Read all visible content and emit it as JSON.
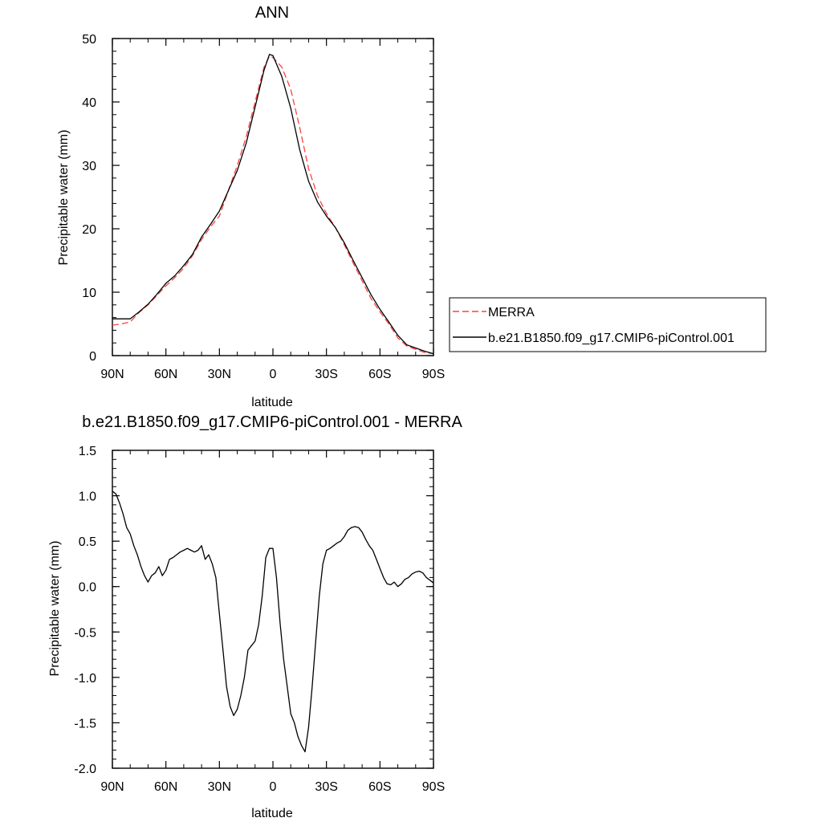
{
  "chart_data": [
    {
      "type": "line",
      "title": "ANN",
      "xlabel": "latitude",
      "ylabel": "Precipitable water (mm)",
      "xlim": [
        90,
        -90
      ],
      "ylim": [
        0,
        50
      ],
      "xticks": [
        {
          "value": 90,
          "label": "90N"
        },
        {
          "value": 60,
          "label": "60N"
        },
        {
          "value": 30,
          "label": "30N"
        },
        {
          "value": 0,
          "label": "0"
        },
        {
          "value": -30,
          "label": "30S"
        },
        {
          "value": -60,
          "label": "60S"
        },
        {
          "value": -90,
          "label": "90S"
        }
      ],
      "yticks": [
        {
          "value": 0,
          "label": "0"
        },
        {
          "value": 10,
          "label": "10"
        },
        {
          "value": 20,
          "label": "20"
        },
        {
          "value": 30,
          "label": "30"
        },
        {
          "value": 40,
          "label": "40"
        },
        {
          "value": 50,
          "label": "50"
        }
      ],
      "series": [
        {
          "name": "MERRA",
          "color": "#ff4040",
          "dash": "8,4",
          "x": [
            90,
            85,
            80,
            75,
            70,
            65,
            60,
            55,
            50,
            45,
            40,
            35,
            30,
            25,
            20,
            15,
            10,
            5,
            2,
            0,
            -5,
            -10,
            -15,
            -20,
            -25,
            -30,
            -35,
            -40,
            -45,
            -50,
            -55,
            -60,
            -65,
            -70,
            -75,
            -80,
            -85,
            -90
          ],
          "y": [
            4.8,
            5.0,
            5.3,
            6.8,
            8.0,
            9.5,
            11.0,
            12.3,
            13.8,
            15.8,
            18.3,
            20.3,
            22.0,
            26.0,
            30.0,
            34.5,
            40.0,
            45.5,
            47.2,
            47.0,
            45.5,
            42.0,
            36.0,
            29.5,
            25.2,
            22.4,
            20.2,
            17.5,
            14.6,
            11.8,
            9.0,
            6.9,
            5.0,
            2.8,
            1.5,
            1.0,
            0.5,
            0.3
          ]
        },
        {
          "name": "b.e21.B1850.f09_g17.CMIP6-piControl.001",
          "color": "#000000",
          "dash": "",
          "x": [
            90,
            85,
            80,
            75,
            70,
            65,
            60,
            55,
            50,
            45,
            40,
            35,
            30,
            25,
            20,
            15,
            10,
            5,
            2,
            0,
            -5,
            -10,
            -15,
            -20,
            -25,
            -30,
            -35,
            -40,
            -45,
            -50,
            -55,
            -60,
            -65,
            -70,
            -75,
            -80,
            -85,
            -90
          ],
          "y": [
            5.8,
            5.8,
            5.8,
            6.9,
            8.1,
            9.7,
            11.4,
            12.6,
            14.2,
            16.0,
            18.7,
            20.7,
            22.8,
            26.0,
            29.2,
            33.5,
            39.2,
            45.0,
            47.5,
            47.3,
            44.0,
            39.0,
            32.5,
            27.5,
            24.2,
            22.0,
            20.2,
            17.8,
            15.0,
            12.3,
            9.6,
            7.3,
            5.3,
            3.2,
            1.7,
            1.2,
            0.7,
            0.3
          ]
        }
      ],
      "legend": {
        "position": "right",
        "entries": [
          "MERRA",
          "b.e21.B1850.f09_g17.CMIP6-piControl.001"
        ]
      }
    },
    {
      "type": "line",
      "title": "b.e21.B1850.f09_g17.CMIP6-piControl.001 - MERRA",
      "xlabel": "latitude",
      "ylabel": "Precipitable water (mm)",
      "xlim": [
        90,
        -90
      ],
      "ylim": [
        -2.0,
        1.5
      ],
      "xticks": [
        {
          "value": 90,
          "label": "90N"
        },
        {
          "value": 60,
          "label": "60N"
        },
        {
          "value": 30,
          "label": "30N"
        },
        {
          "value": 0,
          "label": "0"
        },
        {
          "value": -30,
          "label": "30S"
        },
        {
          "value": -60,
          "label": "60S"
        },
        {
          "value": -90,
          "label": "90S"
        }
      ],
      "yticks": [
        {
          "value": -2.0,
          "label": "-2.0"
        },
        {
          "value": -1.5,
          "label": "-1.5"
        },
        {
          "value": -1.0,
          "label": "-1.0"
        },
        {
          "value": -0.5,
          "label": "-0.5"
        },
        {
          "value": 0.0,
          "label": "0.0"
        },
        {
          "value": 0.5,
          "label": "0.5"
        },
        {
          "value": 1.0,
          "label": "1.0"
        },
        {
          "value": 1.5,
          "label": "1.5"
        }
      ],
      "series": [
        {
          "color": "#000000",
          "dash": "",
          "x": [
            90,
            88,
            86,
            84,
            82,
            80,
            78,
            76,
            74,
            72,
            70,
            68,
            66,
            64,
            62,
            60,
            58,
            56,
            54,
            52,
            50,
            48,
            46,
            44,
            42,
            40,
            38,
            36,
            34,
            32,
            30,
            28,
            26,
            24,
            22,
            20,
            18,
            16,
            14,
            12,
            10,
            8,
            6,
            4,
            2,
            0,
            -2,
            -4,
            -6,
            -8,
            -10,
            -12,
            -14,
            -16,
            -18,
            -20,
            -22,
            -24,
            -26,
            -28,
            -30,
            -32,
            -34,
            -36,
            -38,
            -40,
            -42,
            -44,
            -46,
            -48,
            -50,
            -52,
            -54,
            -56,
            -58,
            -60,
            -62,
            -64,
            -66,
            -68,
            -70,
            -72,
            -74,
            -76,
            -78,
            -80,
            -82,
            -84,
            -86,
            -88,
            -90
          ],
          "y": [
            1.05,
            1.02,
            0.92,
            0.8,
            0.65,
            0.58,
            0.45,
            0.35,
            0.22,
            0.12,
            0.05,
            0.12,
            0.15,
            0.22,
            0.12,
            0.18,
            0.3,
            0.32,
            0.35,
            0.38,
            0.4,
            0.42,
            0.4,
            0.38,
            0.4,
            0.45,
            0.3,
            0.35,
            0.25,
            0.1,
            -0.3,
            -0.7,
            -1.1,
            -1.32,
            -1.42,
            -1.35,
            -1.2,
            -1.0,
            -0.7,
            -0.65,
            -0.6,
            -0.42,
            -0.1,
            0.32,
            0.42,
            0.42,
            0.1,
            -0.4,
            -0.8,
            -1.1,
            -1.4,
            -1.5,
            -1.65,
            -1.75,
            -1.82,
            -1.55,
            -1.1,
            -0.6,
            -0.1,
            0.25,
            0.4,
            0.42,
            0.45,
            0.48,
            0.5,
            0.55,
            0.62,
            0.65,
            0.66,
            0.65,
            0.6,
            0.52,
            0.45,
            0.4,
            0.3,
            0.2,
            0.1,
            0.03,
            0.02,
            0.05,
            0.0,
            0.03,
            0.08,
            0.1,
            0.14,
            0.16,
            0.17,
            0.15,
            0.1,
            0.07,
            0.04
          ]
        }
      ]
    }
  ]
}
